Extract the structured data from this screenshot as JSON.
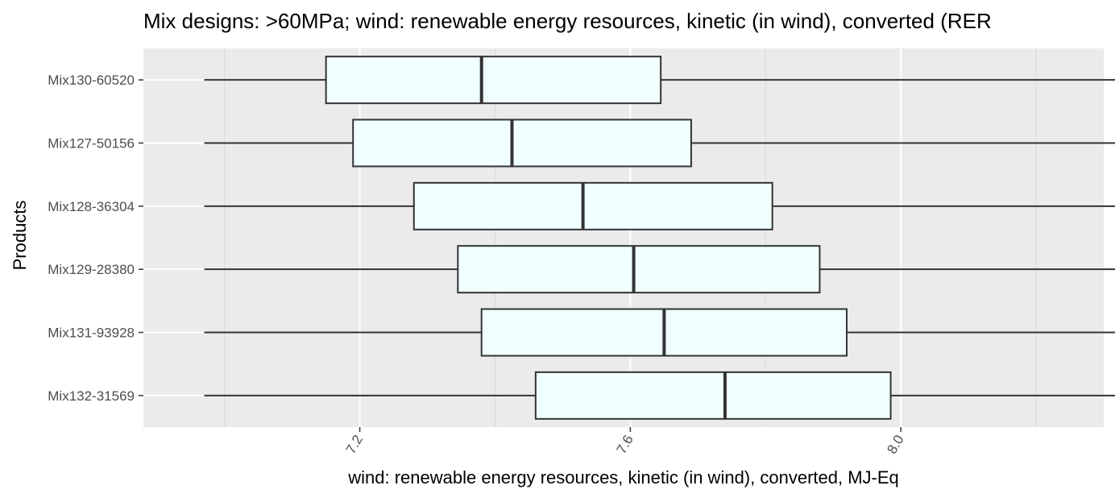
{
  "chart_data": {
    "type": "boxplot",
    "orientation": "horizontal",
    "title": "Mix designs: >60MPa; wind: renewable energy resources, kinetic (in wind), converted (RER",
    "xlabel": "wind: renewable energy resources, kinetic (in wind), converted, MJ-Eq",
    "ylabel": "Products",
    "xlim": [
      6.88,
      8.3
    ],
    "xticks": [
      7.2,
      7.6,
      8.0
    ],
    "xtick_labels": [
      "7.2",
      "7.6",
      "8.0"
    ],
    "grid": true,
    "categories": [
      "Mix130-60520",
      "Mix127-50156",
      "Mix128-36304",
      "Mix129-28380",
      "Mix131-93928",
      "Mix132-31569"
    ],
    "boxes": [
      {
        "label": "Mix130-60520",
        "whisker_low": 6.97,
        "q1": 7.15,
        "median": 7.38,
        "q3": 7.645,
        "whisker_high": 8.345
      },
      {
        "label": "Mix127-50156",
        "whisker_low": 6.97,
        "q1": 7.19,
        "median": 7.425,
        "q3": 7.69,
        "whisker_high": 8.345
      },
      {
        "label": "Mix128-36304",
        "whisker_low": 6.97,
        "q1": 7.28,
        "median": 7.53,
        "q3": 7.81,
        "whisker_high": 8.345
      },
      {
        "label": "Mix129-28380",
        "whisker_low": 6.97,
        "q1": 7.345,
        "median": 7.605,
        "q3": 7.88,
        "whisker_high": 8.345
      },
      {
        "label": "Mix131-93928",
        "whisker_low": 6.97,
        "q1": 7.38,
        "median": 7.65,
        "q3": 7.92,
        "whisker_high": 8.345
      },
      {
        "label": "Mix132-31569",
        "whisker_low": 6.97,
        "q1": 7.46,
        "median": 7.74,
        "q3": 7.985,
        "whisker_high": 8.345
      }
    ],
    "colors": {
      "box_fill": "#F0FFFF",
      "box_stroke": "#333333",
      "panel": "#EBEBEB",
      "grid": "#FFFFFF"
    }
  }
}
